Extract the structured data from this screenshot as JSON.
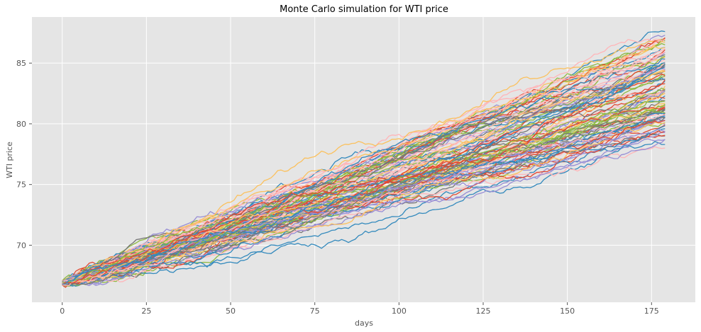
{
  "chart_data": {
    "type": "line",
    "title": "Monte Carlo simulation for WTI price",
    "xlabel": "days",
    "ylabel": "WTI price",
    "xlim": [
      -9,
      188
    ],
    "ylim": [
      65.3,
      88.8
    ],
    "xticks": [
      0,
      25,
      50,
      75,
      100,
      125,
      150,
      175
    ],
    "yticks": [
      70,
      75,
      80,
      85
    ],
    "grid": true,
    "background": "#e5e5e5",
    "grid_color": "#ffffff",
    "n_days": 180,
    "start_value": 66.9,
    "end_value_range": [
      78.0,
      87.6
    ],
    "n_simulations": 100,
    "series_colors": [
      "#e24a33",
      "#348abd",
      "#988ed5",
      "#777777",
      "#fbc15e",
      "#8eba42",
      "#ffb5b8"
    ],
    "series": [
      {
        "end": 87.6,
        "color": "#348abd"
      },
      {
        "end": 87.3,
        "color": "#988ed5"
      },
      {
        "end": 87.1,
        "color": "#e24a33"
      },
      {
        "end": 86.9,
        "color": "#ffb5b8"
      },
      {
        "end": 86.7,
        "color": "#fbc15e"
      },
      {
        "end": 86.5,
        "color": "#8eba42"
      },
      {
        "end": 86.3,
        "color": "#348abd"
      },
      {
        "end": 86.1,
        "color": "#e24a33"
      },
      {
        "end": 85.9,
        "color": "#988ed5"
      },
      {
        "end": 85.7,
        "color": "#777777"
      },
      {
        "end": 85.5,
        "color": "#fbc15e"
      },
      {
        "end": 85.3,
        "color": "#ffb5b8"
      },
      {
        "end": 85.1,
        "color": "#8eba42"
      },
      {
        "end": 84.9,
        "color": "#348abd"
      },
      {
        "end": 84.7,
        "color": "#e24a33"
      },
      {
        "end": 84.5,
        "color": "#988ed5"
      },
      {
        "end": 84.3,
        "color": "#fbc15e"
      },
      {
        "end": 84.1,
        "color": "#8eba42"
      },
      {
        "end": 83.9,
        "color": "#ffb5b8"
      },
      {
        "end": 83.7,
        "color": "#777777"
      },
      {
        "end": 83.5,
        "color": "#348abd"
      },
      {
        "end": 83.3,
        "color": "#e24a33"
      },
      {
        "end": 83.1,
        "color": "#fbc15e"
      },
      {
        "end": 82.9,
        "color": "#988ed5"
      },
      {
        "end": 82.7,
        "color": "#8eba42"
      },
      {
        "end": 82.5,
        "color": "#ffb5b8"
      },
      {
        "end": 82.3,
        "color": "#348abd"
      },
      {
        "end": 82.1,
        "color": "#e24a33"
      },
      {
        "end": 81.9,
        "color": "#777777"
      },
      {
        "end": 81.7,
        "color": "#fbc15e"
      },
      {
        "end": 81.5,
        "color": "#988ed5"
      },
      {
        "end": 81.3,
        "color": "#8eba42"
      },
      {
        "end": 81.1,
        "color": "#ffb5b8"
      },
      {
        "end": 80.9,
        "color": "#e24a33"
      },
      {
        "end": 80.7,
        "color": "#348abd"
      },
      {
        "end": 80.5,
        "color": "#fbc15e"
      },
      {
        "end": 80.3,
        "color": "#988ed5"
      },
      {
        "end": 80.1,
        "color": "#8eba42"
      },
      {
        "end": 79.9,
        "color": "#e24a33"
      },
      {
        "end": 79.6,
        "color": "#348abd"
      },
      {
        "end": 79.3,
        "color": "#ffb5b8"
      },
      {
        "end": 79.0,
        "color": "#777777"
      },
      {
        "end": 78.7,
        "color": "#988ed5"
      },
      {
        "end": 78.3,
        "color": "#348abd"
      },
      {
        "end": 78.0,
        "color": "#ffb5b8"
      }
    ]
  }
}
